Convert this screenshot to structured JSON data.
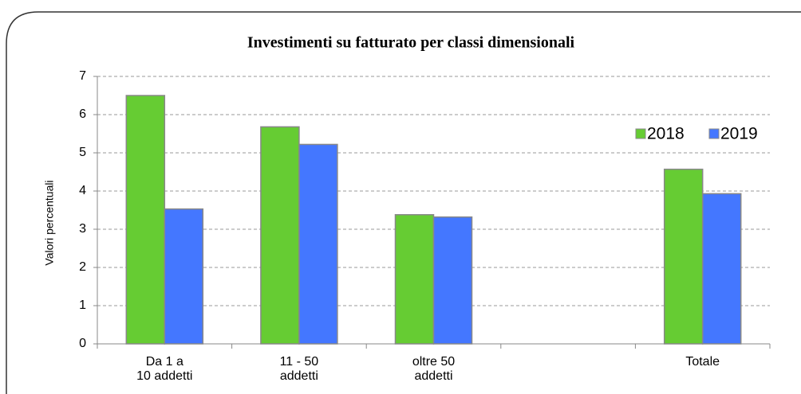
{
  "chart_data": {
    "type": "bar",
    "title": "Investimenti su fatturato per classi dimensionali",
    "y_label": "Valori percentuali",
    "categories": [
      "Da 1 a\n10 addetti",
      "11 - 50\naddetti",
      "oltre 50\naddetti",
      null,
      "Totale"
    ],
    "series": [
      {
        "name": "2018",
        "color": "#66cc33",
        "values": [
          6.5,
          5.68,
          3.38,
          null,
          4.57
        ]
      },
      {
        "name": "2019",
        "color": "#4477ff",
        "values": [
          3.53,
          5.22,
          3.32,
          null,
          3.93
        ]
      }
    ],
    "ylim": [
      0,
      7
    ],
    "yticks": [
      0,
      1,
      2,
      3,
      4,
      5,
      6,
      7
    ],
    "grid": true,
    "legend": "upper right"
  }
}
